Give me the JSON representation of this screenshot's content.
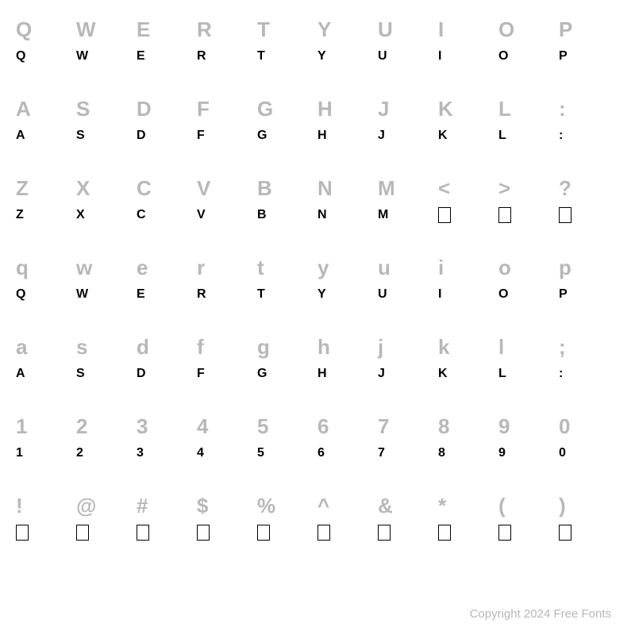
{
  "rows": [
    {
      "reference": [
        "Q",
        "W",
        "E",
        "R",
        "T",
        "Y",
        "U",
        "I",
        "O",
        "P"
      ],
      "sample": [
        "Q",
        "W",
        "E",
        "R",
        "T",
        "Y",
        "U",
        "I",
        "O",
        "P"
      ],
      "sampleMissing": [
        false,
        false,
        false,
        false,
        false,
        false,
        false,
        false,
        false,
        false
      ]
    },
    {
      "reference": [
        "A",
        "S",
        "D",
        "F",
        "G",
        "H",
        "J",
        "K",
        "L",
        ":"
      ],
      "sample": [
        "A",
        "S",
        "D",
        "F",
        "G",
        "H",
        "J",
        "K",
        "L",
        ":"
      ],
      "sampleMissing": [
        false,
        false,
        false,
        false,
        false,
        false,
        false,
        false,
        false,
        false
      ]
    },
    {
      "reference": [
        "Z",
        "X",
        "C",
        "V",
        "B",
        "N",
        "M",
        "<",
        ">",
        "?"
      ],
      "sample": [
        "Z",
        "X",
        "C",
        "V",
        "B",
        "N",
        "M",
        "",
        "",
        ""
      ],
      "sampleMissing": [
        false,
        false,
        false,
        false,
        false,
        false,
        false,
        true,
        true,
        true
      ]
    },
    {
      "reference": [
        "q",
        "w",
        "e",
        "r",
        "t",
        "y",
        "u",
        "i",
        "o",
        "p"
      ],
      "sample": [
        "Q",
        "W",
        "E",
        "R",
        "T",
        "Y",
        "U",
        "I",
        "O",
        "P"
      ],
      "sampleMissing": [
        false,
        false,
        false,
        false,
        false,
        false,
        false,
        false,
        false,
        false
      ]
    },
    {
      "reference": [
        "a",
        "s",
        "d",
        "f",
        "g",
        "h",
        "j",
        "k",
        "l",
        ";"
      ],
      "sample": [
        "A",
        "S",
        "D",
        "F",
        "G",
        "H",
        "J",
        "K",
        "L",
        ":"
      ],
      "sampleMissing": [
        false,
        false,
        false,
        false,
        false,
        false,
        false,
        false,
        false,
        false
      ]
    },
    {
      "reference": [
        "1",
        "2",
        "3",
        "4",
        "5",
        "6",
        "7",
        "8",
        "9",
        "0"
      ],
      "sample": [
        "1",
        "2",
        "3",
        "4",
        "5",
        "6",
        "7",
        "8",
        "9",
        "0"
      ],
      "sampleMissing": [
        false,
        false,
        false,
        false,
        false,
        false,
        false,
        false,
        false,
        false
      ]
    },
    {
      "reference": [
        "!",
        "@",
        "#",
        "$",
        "%",
        "^",
        "&",
        "*",
        "(",
        ")"
      ],
      "sample": [
        "",
        "",
        "",
        "",
        "",
        "",
        "",
        "",
        "",
        ""
      ],
      "sampleMissing": [
        true,
        true,
        true,
        true,
        true,
        true,
        true,
        true,
        true,
        true
      ]
    }
  ],
  "footer": "Copyright 2024 Free Fonts",
  "colors": {
    "referenceText": "#b8b8b8",
    "sampleText": "#000000",
    "background": "#ffffff"
  },
  "typography": {
    "referenceFontSize": 26,
    "sampleFontSize": 16,
    "footerFontSize": 15
  }
}
